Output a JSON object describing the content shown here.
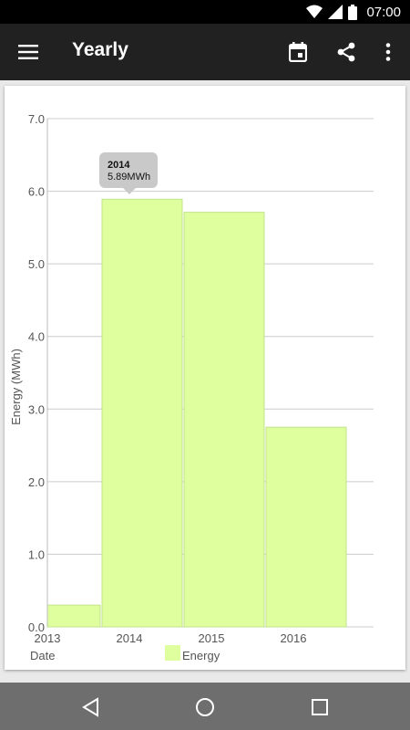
{
  "status_bar": {
    "time": "07:00"
  },
  "app_bar": {
    "title": "Yearly",
    "icons": [
      "menu-icon",
      "calendar-icon",
      "share-icon",
      "more-vert-icon"
    ]
  },
  "colors": {
    "bar_fill": "#dfff9e",
    "bar_stroke": "#c2e38a",
    "app_bar": "#212121",
    "grid": "#cccccc",
    "tooltip": "#c9c9c9"
  },
  "tooltip": {
    "title": "2014",
    "value": "5.89MWh"
  },
  "chart_data": {
    "type": "bar",
    "categories": [
      "2013",
      "2014",
      "2015",
      "2016"
    ],
    "series": [
      {
        "name": "Energy",
        "values": [
          0.3,
          5.89,
          5.71,
          2.75
        ]
      }
    ],
    "ylabel": "Energy (MWh)",
    "xlabel": "Date",
    "ylim": [
      0,
      7
    ],
    "yticks": [
      "0.0",
      "1.0",
      "2.0",
      "3.0",
      "4.0",
      "5.0",
      "6.0",
      "7.0"
    ],
    "grid": true,
    "legend": "bottom-center"
  }
}
